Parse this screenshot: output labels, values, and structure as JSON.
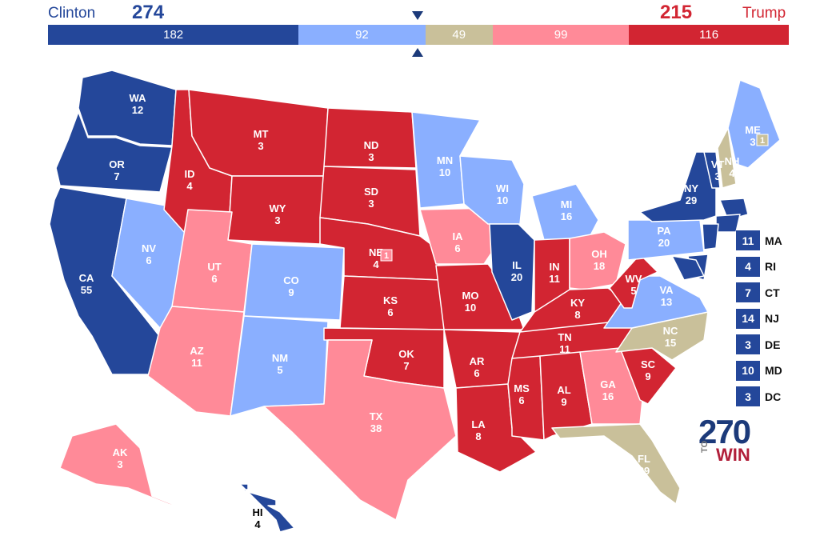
{
  "colors": {
    "safe_dem": "#24479a",
    "lean_dem": "#8aafff",
    "tossup": "#c9c09a",
    "lean_rep": "#ff8a98",
    "safe_rep": "#d22532"
  },
  "header": {
    "dem_name": "Clinton",
    "dem_total": "274",
    "rep_name": "Trump",
    "rep_total": "215"
  },
  "bar": [
    {
      "value": "182",
      "rating": "safe_dem"
    },
    {
      "value": "92",
      "rating": "lean_dem"
    },
    {
      "value": "49",
      "rating": "tossup"
    },
    {
      "value": "99",
      "rating": "lean_rep"
    },
    {
      "value": "116",
      "rating": "safe_rep"
    }
  ],
  "states": [
    {
      "abbr": "WA",
      "ev": "12",
      "rating": "safe_dem"
    },
    {
      "abbr": "OR",
      "ev": "7",
      "rating": "safe_dem"
    },
    {
      "abbr": "CA",
      "ev": "55",
      "rating": "safe_dem"
    },
    {
      "abbr": "NV",
      "ev": "6",
      "rating": "lean_dem"
    },
    {
      "abbr": "ID",
      "ev": "4",
      "rating": "safe_rep"
    },
    {
      "abbr": "MT",
      "ev": "3",
      "rating": "safe_rep"
    },
    {
      "abbr": "WY",
      "ev": "3",
      "rating": "safe_rep"
    },
    {
      "abbr": "UT",
      "ev": "6",
      "rating": "lean_rep"
    },
    {
      "abbr": "AZ",
      "ev": "11",
      "rating": "lean_rep"
    },
    {
      "abbr": "CO",
      "ev": "9",
      "rating": "lean_dem"
    },
    {
      "abbr": "NM",
      "ev": "5",
      "rating": "lean_dem"
    },
    {
      "abbr": "ND",
      "ev": "3",
      "rating": "safe_rep"
    },
    {
      "abbr": "SD",
      "ev": "3",
      "rating": "safe_rep"
    },
    {
      "abbr": "NE",
      "ev": "4",
      "rating": "safe_rep"
    },
    {
      "abbr": "KS",
      "ev": "6",
      "rating": "safe_rep"
    },
    {
      "abbr": "OK",
      "ev": "7",
      "rating": "safe_rep"
    },
    {
      "abbr": "TX",
      "ev": "38",
      "rating": "lean_rep"
    },
    {
      "abbr": "MN",
      "ev": "10",
      "rating": "lean_dem"
    },
    {
      "abbr": "IA",
      "ev": "6",
      "rating": "lean_rep"
    },
    {
      "abbr": "MO",
      "ev": "10",
      "rating": "safe_rep"
    },
    {
      "abbr": "AR",
      "ev": "6",
      "rating": "safe_rep"
    },
    {
      "abbr": "LA",
      "ev": "8",
      "rating": "safe_rep"
    },
    {
      "abbr": "WI",
      "ev": "10",
      "rating": "lean_dem"
    },
    {
      "abbr": "IL",
      "ev": "20",
      "rating": "safe_dem"
    },
    {
      "abbr": "MI",
      "ev": "16",
      "rating": "lean_dem"
    },
    {
      "abbr": "IN",
      "ev": "11",
      "rating": "safe_rep"
    },
    {
      "abbr": "OH",
      "ev": "18",
      "rating": "lean_rep"
    },
    {
      "abbr": "KY",
      "ev": "8",
      "rating": "safe_rep"
    },
    {
      "abbr": "TN",
      "ev": "11",
      "rating": "safe_rep"
    },
    {
      "abbr": "MS",
      "ev": "6",
      "rating": "safe_rep"
    },
    {
      "abbr": "AL",
      "ev": "9",
      "rating": "safe_rep"
    },
    {
      "abbr": "GA",
      "ev": "16",
      "rating": "lean_rep"
    },
    {
      "abbr": "FL",
      "ev": "29",
      "rating": "tossup"
    },
    {
      "abbr": "SC",
      "ev": "9",
      "rating": "safe_rep"
    },
    {
      "abbr": "NC",
      "ev": "15",
      "rating": "tossup"
    },
    {
      "abbr": "VA",
      "ev": "13",
      "rating": "lean_dem"
    },
    {
      "abbr": "WV",
      "ev": "5",
      "rating": "safe_rep"
    },
    {
      "abbr": "PA",
      "ev": "20",
      "rating": "lean_dem"
    },
    {
      "abbr": "NY",
      "ev": "29",
      "rating": "safe_dem"
    },
    {
      "abbr": "VT",
      "ev": "3",
      "rating": "safe_dem"
    },
    {
      "abbr": "NH",
      "ev": "4",
      "rating": "tossup"
    },
    {
      "abbr": "ME",
      "ev": "3",
      "rating": "lean_dem"
    },
    {
      "abbr": "AK",
      "ev": "3",
      "rating": "lean_rep"
    },
    {
      "abbr": "HI",
      "ev": "4",
      "rating": "safe_dem"
    }
  ],
  "split_districts": [
    {
      "state": "ME",
      "ev": "1",
      "rating": "tossup"
    },
    {
      "state": "NE",
      "ev": "1",
      "rating": "lean_rep"
    }
  ],
  "small_states": [
    {
      "abbr": "MA",
      "ev": "11",
      "rating": "safe_dem"
    },
    {
      "abbr": "RI",
      "ev": "4",
      "rating": "safe_dem"
    },
    {
      "abbr": "CT",
      "ev": "7",
      "rating": "safe_dem"
    },
    {
      "abbr": "NJ",
      "ev": "14",
      "rating": "safe_dem"
    },
    {
      "abbr": "DE",
      "ev": "3",
      "rating": "safe_dem"
    },
    {
      "abbr": "MD",
      "ev": "10",
      "rating": "safe_dem"
    },
    {
      "abbr": "DC",
      "ev": "3",
      "rating": "safe_dem"
    }
  ],
  "logo": {
    "number": "270",
    "to": "TO",
    "win": "WIN"
  }
}
